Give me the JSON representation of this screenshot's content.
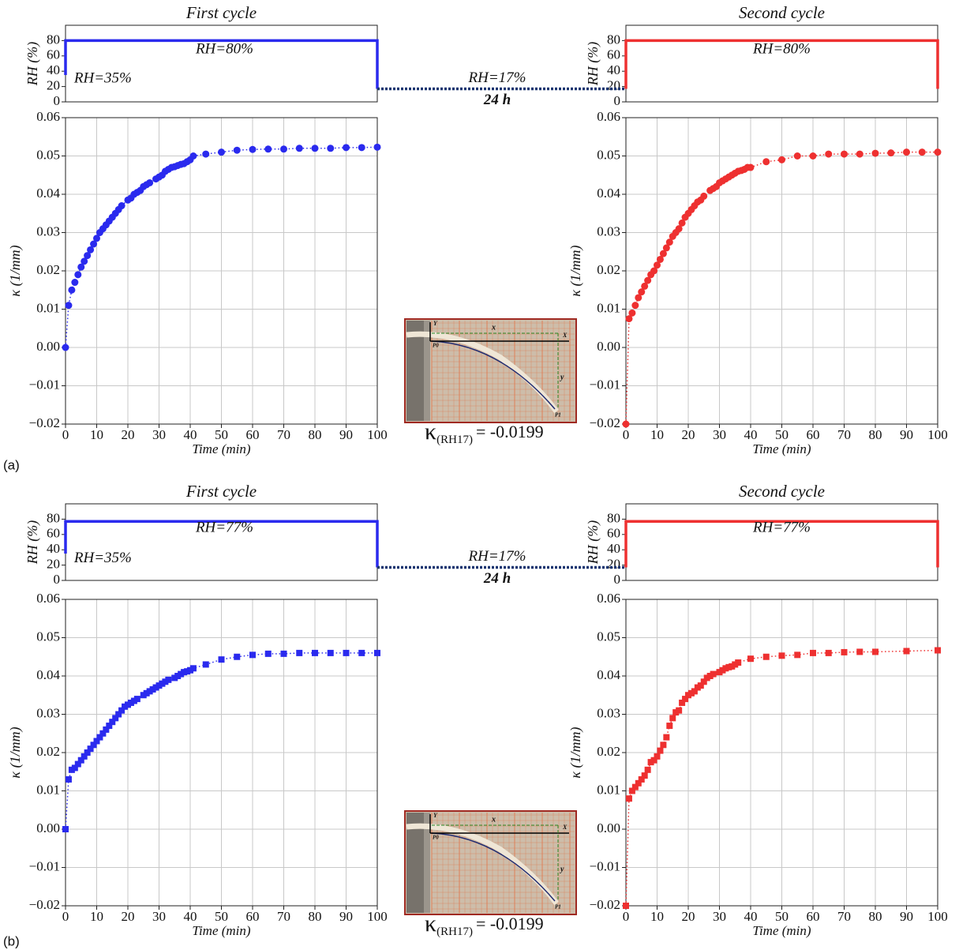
{
  "panels": [
    {
      "label": "(a)",
      "gap": {
        "rh": "RH=17%",
        "duration": "24 h"
      },
      "inset": {
        "axis_y": "Y",
        "axis_x": "X",
        "dim_x": "x",
        "dim_y": "y",
        "start": "P0",
        "end": "P1",
        "kappa": "κ",
        "kappa_sub": "(RH17)",
        "kappa_value": "= -0.0199"
      }
    },
    {
      "label": "(b)",
      "gap": {
        "rh": "RH=17%",
        "duration": "24 h"
      },
      "inset": {
        "axis_y": "Y",
        "axis_x": "X",
        "dim_x": "x",
        "dim_y": "y",
        "start": "P0",
        "end": "P1",
        "kappa": "κ",
        "kappa_sub": "(RH17)",
        "kappa_value": "= -0.0199"
      }
    }
  ],
  "chart_data": [
    {
      "type": "line",
      "title": "First cycle",
      "ylabel": "RH (%)",
      "xlim": [
        0,
        100
      ],
      "ylim": [
        0,
        100
      ],
      "yticks": [
        0,
        20,
        40,
        60,
        80
      ],
      "grid": false,
      "color": "#2a2aee",
      "linestyle": "solid",
      "x": [
        0,
        0,
        100,
        100
      ],
      "values": [
        35,
        80,
        80,
        17
      ],
      "annotations": [
        "RH=80%",
        "RH=35%"
      ]
    },
    {
      "type": "line",
      "title": "Second cycle",
      "ylabel": "RH (%)",
      "xlim": [
        0,
        100
      ],
      "ylim": [
        0,
        100
      ],
      "yticks": [
        0,
        20,
        40,
        60,
        80
      ],
      "grid": false,
      "color": "#ee3030",
      "linestyle": "solid",
      "x": [
        0,
        0,
        100,
        100
      ],
      "values": [
        17,
        80,
        80,
        17
      ],
      "annotations": [
        "RH=80%"
      ]
    },
    {
      "type": "line",
      "ylabel": "κ (1/mm)",
      "xlabel": "Time (min)",
      "xlim": [
        0,
        100
      ],
      "ylim": [
        -0.02,
        0.06
      ],
      "xticks": [
        0,
        10,
        20,
        30,
        40,
        50,
        60,
        70,
        80,
        90,
        100
      ],
      "yticks": [
        {
          "value": -0.02,
          "label": "−0.02"
        },
        {
          "value": -0.01,
          "label": "−0.01"
        },
        {
          "value": 0,
          "label": "0.00"
        },
        0.01,
        0.02,
        0.03,
        0.04,
        0.05,
        0.06
      ],
      "grid": true,
      "color": "#2a2aee",
      "linestyle": "dotted",
      "marker": "o",
      "x": [
        0,
        1,
        2,
        3,
        4,
        5,
        6,
        7,
        8,
        9,
        10,
        11,
        12,
        13,
        14,
        15,
        16,
        17,
        18,
        20,
        21,
        22,
        23,
        24,
        25,
        26,
        27,
        29,
        30,
        31,
        32,
        33,
        34,
        35,
        36,
        37,
        38,
        39,
        40,
        41,
        45,
        50,
        55,
        60,
        65,
        70,
        75,
        80,
        85,
        90,
        95,
        100
      ],
      "values": [
        0,
        0.011,
        0.015,
        0.017,
        0.019,
        0.021,
        0.0225,
        0.024,
        0.0255,
        0.027,
        0.0285,
        0.03,
        0.031,
        0.032,
        0.033,
        0.034,
        0.035,
        0.036,
        0.037,
        0.0385,
        0.039,
        0.04,
        0.0405,
        0.041,
        0.042,
        0.0425,
        0.043,
        0.044,
        0.0445,
        0.045,
        0.046,
        0.0465,
        0.047,
        0.0472,
        0.0475,
        0.0478,
        0.048,
        0.0485,
        0.049,
        0.05,
        0.0505,
        0.051,
        0.0515,
        0.0517,
        0.0518,
        0.0518,
        0.052,
        0.052,
        0.052,
        0.0522,
        0.0522,
        0.0523
      ]
    },
    {
      "type": "line",
      "ylabel": "κ (1/mm)",
      "xlabel": "Time (min)",
      "xlim": [
        0,
        100
      ],
      "ylim": [
        -0.02,
        0.06
      ],
      "xticks": [
        0,
        10,
        20,
        30,
        40,
        50,
        60,
        70,
        80,
        90,
        100
      ],
      "yticks": [
        {
          "value": -0.02,
          "label": "−0.02"
        },
        {
          "value": -0.01,
          "label": "−0.01"
        },
        {
          "value": 0,
          "label": "0.00"
        },
        0.01,
        0.02,
        0.03,
        0.04,
        0.05,
        0.06
      ],
      "grid": true,
      "color": "#ee3030",
      "linestyle": "dotted",
      "marker": "o",
      "x": [
        0,
        1,
        2,
        3,
        4,
        5,
        6,
        7,
        8,
        9,
        10,
        11,
        12,
        13,
        14,
        15,
        16,
        17,
        18,
        19,
        20,
        21,
        22,
        23,
        24,
        25,
        27,
        28,
        29,
        30,
        31,
        32,
        33,
        34,
        35,
        36,
        37,
        38,
        39,
        40,
        45,
        50,
        55,
        60,
        65,
        70,
        75,
        80,
        85,
        90,
        95,
        100
      ],
      "values": [
        -0.02,
        0.0075,
        0.009,
        0.011,
        0.013,
        0.0145,
        0.016,
        0.0175,
        0.019,
        0.02,
        0.0215,
        0.023,
        0.0245,
        0.026,
        0.0275,
        0.029,
        0.03,
        0.031,
        0.0325,
        0.034,
        0.035,
        0.036,
        0.037,
        0.038,
        0.0385,
        0.0395,
        0.041,
        0.0415,
        0.042,
        0.043,
        0.0435,
        0.044,
        0.0445,
        0.045,
        0.0455,
        0.046,
        0.0462,
        0.0465,
        0.047,
        0.047,
        0.0485,
        0.049,
        0.05,
        0.05,
        0.0505,
        0.0505,
        0.0505,
        0.0507,
        0.0508,
        0.051,
        0.051,
        0.051
      ]
    },
    {
      "type": "line",
      "title": "First cycle",
      "ylabel": "RH (%)",
      "xlim": [
        0,
        100
      ],
      "ylim": [
        0,
        100
      ],
      "yticks": [
        0,
        20,
        40,
        60,
        80
      ],
      "grid": false,
      "color": "#2a2aee",
      "linestyle": "solid",
      "x": [
        0,
        0,
        100,
        100
      ],
      "values": [
        35,
        77,
        77,
        17
      ],
      "annotations": [
        "RH=77%",
        "RH=35%"
      ]
    },
    {
      "type": "line",
      "title": "Second cycle",
      "ylabel": "RH (%)",
      "xlim": [
        0,
        100
      ],
      "ylim": [
        0,
        100
      ],
      "yticks": [
        0,
        20,
        40,
        60,
        80
      ],
      "grid": false,
      "color": "#ee3030",
      "linestyle": "solid",
      "x": [
        0,
        0,
        100,
        100
      ],
      "values": [
        17,
        77,
        77,
        17
      ],
      "annotations": [
        "RH=77%"
      ]
    },
    {
      "type": "line",
      "ylabel": "κ (1/mm)",
      "xlabel": "Time (min)",
      "xlim": [
        0,
        100
      ],
      "ylim": [
        -0.02,
        0.06
      ],
      "xticks": [
        0,
        10,
        20,
        30,
        40,
        50,
        60,
        70,
        80,
        90,
        100
      ],
      "yticks": [
        {
          "value": -0.02,
          "label": "−0.02"
        },
        {
          "value": -0.01,
          "label": "−0.01"
        },
        {
          "value": 0,
          "label": "0.00"
        },
        0.01,
        0.02,
        0.03,
        0.04,
        0.05,
        0.06
      ],
      "grid": true,
      "color": "#2a2aee",
      "linestyle": "dotted",
      "marker": "s",
      "x": [
        0,
        1,
        2,
        3,
        4,
        5,
        6,
        7,
        8,
        9,
        10,
        11,
        12,
        13,
        14,
        15,
        16,
        17,
        18,
        19,
        20,
        21,
        22,
        23,
        25,
        26,
        27,
        28,
        29,
        30,
        31,
        32,
        33,
        35,
        36,
        37,
        38,
        39,
        40,
        41,
        45,
        50,
        55,
        60,
        65,
        70,
        75,
        80,
        85,
        90,
        95,
        100
      ],
      "values": [
        0,
        0.013,
        0.0155,
        0.016,
        0.017,
        0.018,
        0.019,
        0.02,
        0.021,
        0.022,
        0.023,
        0.024,
        0.025,
        0.026,
        0.027,
        0.028,
        0.029,
        0.03,
        0.031,
        0.032,
        0.0325,
        0.033,
        0.0335,
        0.034,
        0.035,
        0.0355,
        0.036,
        0.0365,
        0.037,
        0.0375,
        0.038,
        0.0385,
        0.039,
        0.0395,
        0.04,
        0.0405,
        0.041,
        0.0412,
        0.0415,
        0.042,
        0.043,
        0.0443,
        0.045,
        0.0455,
        0.0458,
        0.0458,
        0.046,
        0.046,
        0.046,
        0.046,
        0.046,
        0.046
      ]
    },
    {
      "type": "line",
      "ylabel": "κ (1/mm)",
      "xlabel": "Time (min)",
      "xlim": [
        0,
        100
      ],
      "ylim": [
        -0.02,
        0.06
      ],
      "xticks": [
        0,
        10,
        20,
        30,
        40,
        50,
        60,
        70,
        80,
        90,
        100
      ],
      "yticks": [
        {
          "value": -0.02,
          "label": "−0.02"
        },
        {
          "value": -0.01,
          "label": "−0.01"
        },
        {
          "value": 0,
          "label": "0.00"
        },
        0.01,
        0.02,
        0.03,
        0.04,
        0.05,
        0.06
      ],
      "grid": true,
      "color": "#ee3030",
      "linestyle": "dotted",
      "marker": "s",
      "x": [
        0,
        1,
        2,
        3,
        4,
        5,
        6,
        7,
        8,
        9,
        10,
        11,
        12,
        13,
        14,
        15,
        16,
        17,
        18,
        19,
        20,
        21,
        22,
        23,
        24,
        25,
        26,
        27,
        28,
        30,
        31,
        32,
        33,
        34,
        35,
        36,
        40,
        45,
        50,
        55,
        60,
        65,
        70,
        75,
        80,
        90,
        100
      ],
      "values": [
        -0.02,
        0.008,
        0.01,
        0.011,
        0.012,
        0.013,
        0.014,
        0.0155,
        0.0175,
        0.018,
        0.019,
        0.0205,
        0.022,
        0.024,
        0.027,
        0.029,
        0.0305,
        0.031,
        0.033,
        0.034,
        0.035,
        0.0355,
        0.036,
        0.037,
        0.0375,
        0.0385,
        0.0395,
        0.04,
        0.0405,
        0.041,
        0.0415,
        0.042,
        0.0423,
        0.0425,
        0.043,
        0.0435,
        0.0445,
        0.045,
        0.0453,
        0.0455,
        0.046,
        0.046,
        0.0462,
        0.0463,
        0.0463,
        0.0465,
        0.0467
      ]
    }
  ]
}
